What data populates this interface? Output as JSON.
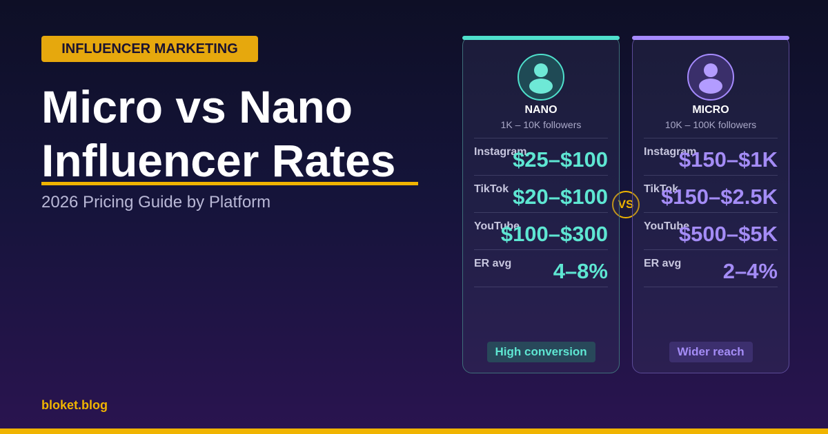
{
  "tag": "INFLUENCER MARKETING",
  "title": [
    "Micro vs Nano",
    "Influencer Rates"
  ],
  "subtitle": "2026 Pricing Guide by Platform",
  "footer": "bloket.blog",
  "vs": "VS",
  "cards": [
    {
      "name": "NANO",
      "followers": "1K – 10K followers",
      "rows": [
        {
          "label": "Instagram",
          "value": "$25–$100"
        },
        {
          "label": "TikTok",
          "value": "$20–$100"
        },
        {
          "label": "YouTube",
          "value": "$100–$300"
        },
        {
          "label": "ER avg",
          "value": "4–8%"
        }
      ],
      "badge": "High conversion"
    },
    {
      "name": "MICRO",
      "followers": "10K – 100K followers",
      "rows": [
        {
          "label": "Instagram",
          "value": "$150–$1K"
        },
        {
          "label": "TikTok",
          "value": "$150–$2.5K"
        },
        {
          "label": "YouTube",
          "value": "$500–$5K"
        },
        {
          "label": "ER avg",
          "value": "2–4%"
        }
      ],
      "badge": "Wider reach"
    }
  ]
}
